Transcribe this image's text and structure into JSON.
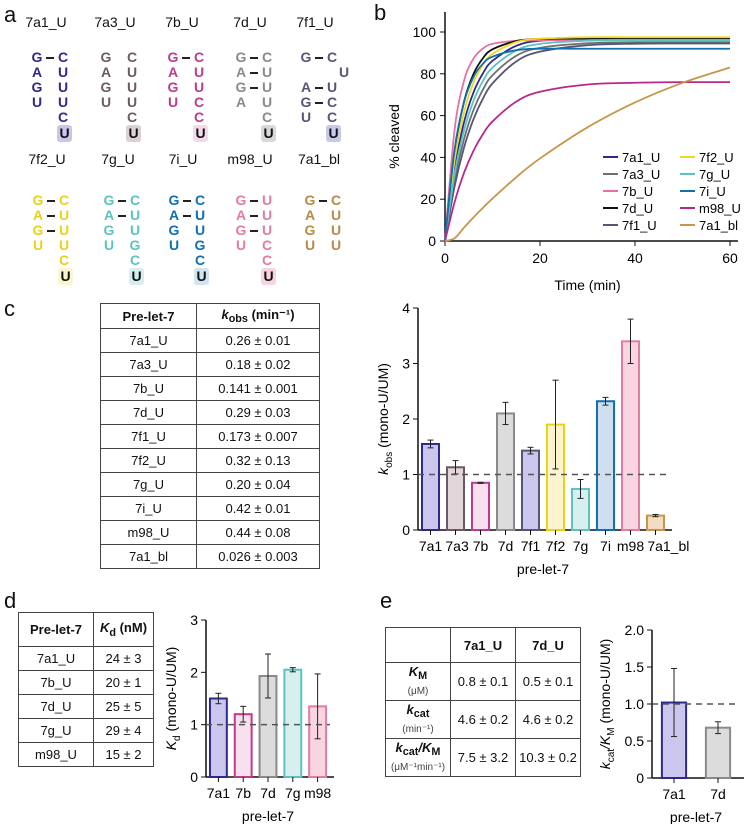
{
  "panels": {
    "a": "a",
    "b": "b",
    "c": "c",
    "d": "d",
    "e": "e"
  },
  "hairpins": [
    {
      "name": "7a1_U",
      "color": "#2e2a8c",
      "hl": "#c9c5ec",
      "rows": [
        [
          "G",
          "C",
          1
        ],
        [
          "A",
          "U",
          0
        ],
        [
          "G",
          "U",
          0
        ],
        [
          "U",
          "U",
          0
        ],
        [
          "",
          "C",
          0
        ],
        [
          "",
          "U",
          0
        ]
      ]
    },
    {
      "name": "7a3_U",
      "color": "#6b5a63",
      "hl": "#ddd0d4",
      "rows": [
        [
          "G",
          "C",
          0
        ],
        [
          "A",
          "U",
          0
        ],
        [
          "G",
          "U",
          0
        ],
        [
          "U",
          "U",
          0
        ],
        [
          "",
          "C",
          0
        ],
        [
          "",
          "U",
          0
        ]
      ]
    },
    {
      "name": "7b_U",
      "color": "#c03a8c",
      "hl": "#f3d9ea",
      "rows": [
        [
          "G",
          "C",
          1
        ],
        [
          "A",
          "U",
          0
        ],
        [
          "G",
          "U",
          0
        ],
        [
          "U",
          "C",
          0
        ],
        [
          "",
          "C",
          0
        ],
        [
          "",
          "U",
          0
        ]
      ]
    },
    {
      "name": "7d_U",
      "color": "#8a8a8a",
      "hl": "#d8d8d8",
      "rows": [
        [
          "G",
          "C",
          1
        ],
        [
          "A",
          "U",
          1
        ],
        [
          "G",
          "U",
          1
        ],
        [
          "A",
          "U",
          0
        ],
        [
          "",
          "C",
          0
        ],
        [
          "",
          "U",
          0
        ]
      ]
    },
    {
      "name": "7f1_U",
      "color": "#555577",
      "hl": "#c8c8ec",
      "rows": [
        [
          "G",
          "C",
          1
        ],
        [
          "",
          "U",
          2
        ],
        [
          "A",
          "U",
          1
        ],
        [
          "G",
          "C",
          1
        ],
        [
          "U",
          "C",
          0
        ],
        [
          "",
          "U",
          0
        ]
      ]
    },
    {
      "name": "7f2_U",
      "color": "#e8d21a",
      "hl": "#fbf5d0",
      "rows": [
        [
          "G",
          "C",
          1
        ],
        [
          "A",
          "U",
          1
        ],
        [
          "G",
          "U",
          1
        ],
        [
          "U",
          "U",
          0
        ],
        [
          "",
          "C",
          0
        ],
        [
          "",
          "U",
          0
        ]
      ]
    },
    {
      "name": "7g_U",
      "color": "#5cc3c0",
      "hl": "#d6eeee",
      "rows": [
        [
          "G",
          "C",
          1
        ],
        [
          "A",
          "U",
          1
        ],
        [
          "G",
          "U",
          0
        ],
        [
          "U",
          "G",
          0
        ],
        [
          "",
          "C",
          0
        ],
        [
          "",
          "U",
          0
        ]
      ]
    },
    {
      "name": "7i_U",
      "color": "#1070b0",
      "hl": "#d2e4f0",
      "rows": [
        [
          "G",
          "C",
          1
        ],
        [
          "A",
          "U",
          1
        ],
        [
          "G",
          "U",
          0
        ],
        [
          "U",
          "G",
          0
        ],
        [
          "",
          "C",
          0
        ],
        [
          "",
          "U",
          0
        ]
      ]
    },
    {
      "name": "m98_U",
      "color": "#e47ba4",
      "hl": "#f7d4e0",
      "rows": [
        [
          "G",
          "U",
          1
        ],
        [
          "A",
          "U",
          1
        ],
        [
          "G",
          "U",
          1
        ],
        [
          "U",
          "C",
          0
        ],
        [
          "",
          "C",
          0
        ],
        [
          "",
          "U",
          0
        ]
      ]
    },
    {
      "name": "7a1_bl",
      "color": "#b88a45",
      "hl": "",
      "rows": [
        [
          "G",
          "C",
          1
        ],
        [
          "A",
          "U",
          0
        ],
        [
          "G",
          "U",
          0
        ],
        [
          "U",
          "U",
          0
        ]
      ]
    }
  ],
  "chart_data": [
    {
      "type": "line",
      "xlabel": "Time (min)",
      "ylabel": "% cleaved",
      "xlim": [
        0,
        60
      ],
      "ylim": [
        0,
        100
      ],
      "xticks": [
        0,
        20,
        40,
        60
      ],
      "yticks": [
        0,
        20,
        40,
        60,
        80,
        100
      ],
      "legend": "bottom-right",
      "x": [
        0,
        2,
        4,
        6,
        8,
        10,
        15,
        20,
        30,
        40,
        50,
        60
      ],
      "series": [
        {
          "name": "7a1_U",
          "color": "#2e2a8c",
          "values": [
            0,
            34.5,
            56.8,
            71.1,
            80.3,
            86.2,
            93.4,
            95.8,
            96.9,
            97,
            97,
            97
          ]
        },
        {
          "name": "7a3_U",
          "color": "#6e6e6e",
          "values": [
            0,
            28.7,
            48.7,
            62.7,
            72.5,
            79.3,
            88.6,
            92.4,
            94.6,
            95,
            95,
            95
          ]
        },
        {
          "name": "7b_U",
          "color": "#e86fa8",
          "values": [
            0,
            52.9,
            76.6,
            87.3,
            92.1,
            94.3,
            95.8,
            96,
            96,
            96,
            96,
            96
          ]
        },
        {
          "name": "7d_U",
          "color": "#111111",
          "values": [
            0,
            42.7,
            66.6,
            79.9,
            87.5,
            91.7,
            95.7,
            96.7,
            97,
            97,
            97,
            97
          ]
        },
        {
          "name": "7f1_U",
          "color": "#555577",
          "values": [
            0,
            25.9,
            44.7,
            58.3,
            68.2,
            75.4,
            85.9,
            90.6,
            93.7,
            94.4,
            94.5,
            94.5
          ]
        },
        {
          "name": "7f2_U",
          "color": "#f0d820",
          "values": [
            0,
            38.3,
            61.6,
            75.8,
            84.3,
            89.5,
            95.2,
            96.8,
            97.5,
            97.5,
            97.5,
            97.5
          ]
        },
        {
          "name": "7g_U",
          "color": "#5cc3c0",
          "values": [
            0,
            31.7,
            52.9,
            67.1,
            76.6,
            83,
            91.2,
            94.3,
            95.8,
            96,
            96,
            96
          ]
        },
        {
          "name": "7i_U",
          "color": "#1070b0",
          "values": [
            0,
            43.5,
            66.4,
            78.5,
            84.9,
            88.2,
            91.3,
            92,
            92,
            92,
            92,
            92
          ]
        },
        {
          "name": "m98_U",
          "color": "#b8288c",
          "values": [
            0,
            18.5,
            32.6,
            43.2,
            51.2,
            57.2,
            66.7,
            71.4,
            74.9,
            75.7,
            76,
            76
          ]
        },
        {
          "name": "7a1_bl",
          "color": "#c8954a",
          "values": [
            0,
            1.3,
            6.4,
            11.3,
            15.9,
            20.3,
            30.5,
            39.5,
            54.4,
            66.3,
            75.7,
            83
          ]
        }
      ]
    },
    {
      "type": "bar",
      "xlabel": "pre-let-7",
      "ylabel": {
        "sym": "k",
        "sub": "obs",
        "rest": " (mono-U/UM)"
      },
      "ylim": [
        0,
        4
      ],
      "yticks": [
        0,
        1,
        2,
        3,
        4
      ],
      "reference_line": 1,
      "categories": [
        "7a1",
        "7a3",
        "7b",
        "7d",
        "7f1",
        "7f2",
        "7g",
        "7i",
        "m98",
        "7a1_bl"
      ],
      "values": [
        1.55,
        1.13,
        0.85,
        2.1,
        1.43,
        1.9,
        0.74,
        2.32,
        3.4,
        0.26
      ],
      "errors": [
        0.07,
        0.12,
        0.01,
        0.2,
        0.06,
        0.8,
        0.17,
        0.07,
        0.4,
        0.02
      ],
      "stroke": [
        "#2e2a8c",
        "#6b5a63",
        "#c03a8c",
        "#8a8a8a",
        "#555577",
        "#e8d21a",
        "#5cc3c0",
        "#1070b0",
        "#e47ba4",
        "#c8954a"
      ],
      "fill": [
        "#cbc6ee",
        "#e2d6da",
        "#f8e0ee",
        "#dcdcdc",
        "#cbc6ee",
        "#fbf4cf",
        "#d7f0ef",
        "#d0dff0",
        "#f9d5e1",
        "#f3dcc2"
      ]
    },
    {
      "type": "bar",
      "xlabel": "pre-let-7",
      "ylabel": {
        "sym": "K",
        "sub": "d",
        "rest": " (mono-U/UM)"
      },
      "ylim": [
        0,
        3
      ],
      "yticks": [
        0,
        1,
        2,
        3
      ],
      "reference_line": 1,
      "categories": [
        "7a1",
        "7b",
        "7d",
        "7g",
        "m98"
      ],
      "values": [
        1.5,
        1.2,
        1.93,
        2.05,
        1.35
      ],
      "errors": [
        0.1,
        0.15,
        0.42,
        0.04,
        0.62
      ],
      "stroke": [
        "#2e2a8c",
        "#c03a8c",
        "#8a8a8a",
        "#5cc3c0",
        "#e47ba4"
      ],
      "fill": [
        "#cbc6ee",
        "#f8e0ee",
        "#dcdcdc",
        "#d7f0ef",
        "#f9d5e1"
      ]
    },
    {
      "type": "bar",
      "xlabel": "pre-let-7",
      "ylabel": {
        "sym": "k",
        "sub": "cat",
        "sym2": "/K",
        "sub2": "M",
        "rest": " (mono-U/UM)"
      },
      "ylim": [
        0,
        2
      ],
      "yticks": [
        "0",
        "0.5",
        "1.0",
        "1.5",
        "2.0"
      ],
      "reference_line": 1,
      "categories": [
        "7a1",
        "7d"
      ],
      "values": [
        1.02,
        0.68
      ],
      "errors": [
        0.46,
        0.08
      ],
      "stroke": [
        "#2e2a8c",
        "#8a8a8a"
      ],
      "fill": [
        "#cbc6ee",
        "#dcdcdc"
      ]
    }
  ],
  "table_c": {
    "header": {
      "col1": "Pre-let-7",
      "sym": "k",
      "sub": "obs",
      "unit": " (min⁻¹)"
    },
    "rows": [
      [
        "7a1_U",
        "0.26 ± 0.01"
      ],
      [
        "7a3_U",
        "0.18 ± 0.02"
      ],
      [
        "7b_U",
        "0.141 ± 0.001"
      ],
      [
        "7d_U",
        "0.29 ± 0.03"
      ],
      [
        "7f1_U",
        "0.173 ± 0.007"
      ],
      [
        "7f2_U",
        "0.32 ± 0.13"
      ],
      [
        "7g_U",
        "0.20 ± 0.04"
      ],
      [
        "7i_U",
        "0.42 ± 0.01"
      ],
      [
        "m98_U",
        "0.44 ± 0.08"
      ],
      [
        "7a1_bl",
        "0.026 ± 0.003"
      ]
    ]
  },
  "table_d": {
    "header": {
      "col1": "Pre-let-7",
      "sym": "K",
      "sub": "d",
      "unit": " (nM)"
    },
    "rows": [
      [
        "7a1_U",
        "24 ± 3"
      ],
      [
        "7b_U",
        "20 ± 1"
      ],
      [
        "7d_U",
        "25 ± 5"
      ],
      [
        "7g_U",
        "29 ± 4"
      ],
      [
        "m98_U",
        "15 ± 2"
      ]
    ]
  },
  "table_e": {
    "header": [
      "",
      "7a1_U",
      "7d_U"
    ],
    "rows": [
      {
        "sym": "K",
        "sub": "M",
        "sym2": "",
        "sub2": "",
        "unit": "(μM)",
        "values": [
          "0.8 ± 0.1",
          "0.5 ± 0.1"
        ]
      },
      {
        "sym": "k",
        "sub": "cat",
        "sym2": "",
        "sub2": "",
        "unit": "(min⁻¹)",
        "values": [
          "4.6 ± 0.2",
          "4.6 ± 0.2"
        ]
      },
      {
        "sym": "k",
        "sub": "cat",
        "sym2": "/K",
        "sub2": "M",
        "unit": "(μM⁻¹min⁻¹)",
        "values": [
          "7.5 ± 3.2",
          "10.3 ± 0.2"
        ]
      }
    ]
  }
}
